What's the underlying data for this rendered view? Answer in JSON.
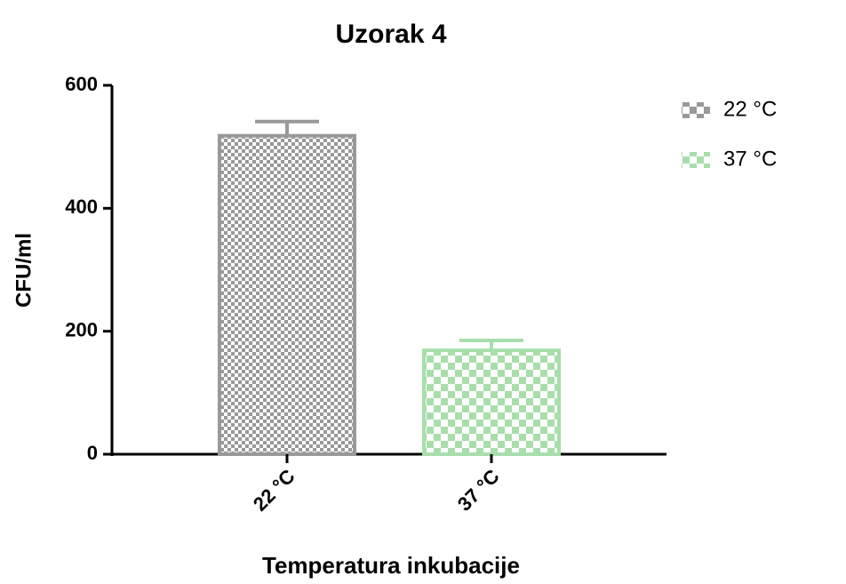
{
  "chart_data": {
    "type": "bar",
    "title": "Uzorak 4",
    "x_label": "Temperatura inkubacije",
    "y_label": "CFU/ml",
    "categories": [
      "22 °C",
      "37 °C"
    ],
    "values": [
      518,
      169
    ],
    "errors": [
      23,
      16
    ],
    "colors": [
      "#999999",
      "#a8deab"
    ],
    "ylim": [
      0,
      600
    ],
    "yticks": [
      0,
      200,
      400,
      600
    ],
    "legend": "right",
    "grid": false
  }
}
